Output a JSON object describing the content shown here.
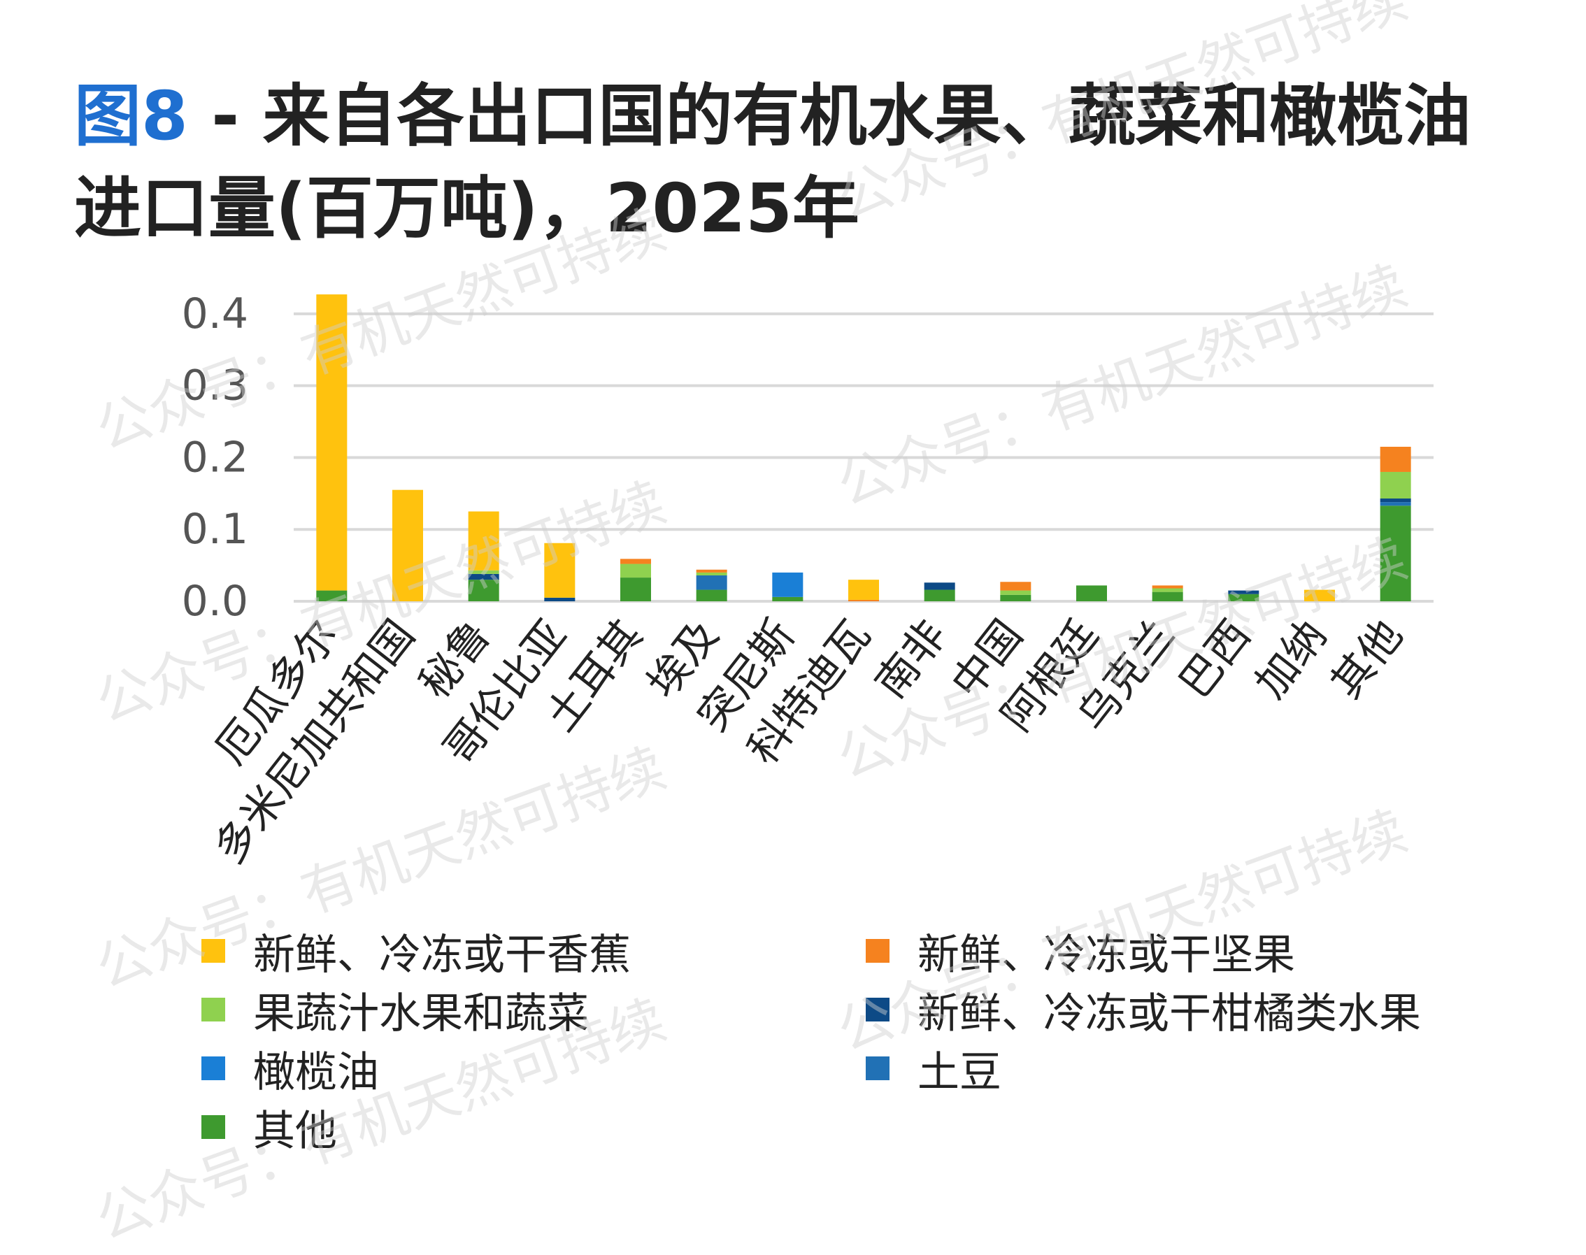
{
  "header": {
    "figure_label": "图8",
    "title_text": " - 来自各出口国的有机水果、蔬菜和橄榄油进口量(百万吨)，2025年"
  },
  "watermark_text": "公众号：有机天然可持续",
  "colors": {
    "title_accent": "#1f6fd0",
    "gridline": "#d9d9d9",
    "tick_text": "#555555"
  },
  "chart_data": {
    "type": "bar",
    "stacked": true,
    "ylim": [
      0,
      0.43
    ],
    "yticks": [
      "0.0",
      "0.1",
      "0.2",
      "0.3",
      "0.4"
    ],
    "grid": true,
    "legend_position": "bottom",
    "categories": [
      "厄瓜多尔",
      "多米尼加共和国",
      "秘鲁",
      "哥伦比亚",
      "土耳其",
      "埃及",
      "突尼斯",
      "科特迪瓦",
      "南非",
      "中国",
      "阿根廷",
      "乌克兰",
      "巴西",
      "加纳",
      "其他"
    ],
    "series": [
      {
        "name": "其他",
        "color": "#3e9a2f",
        "values": [
          0.015,
          0.0,
          0.03,
          0.0,
          0.033,
          0.016,
          0.006,
          0.0,
          0.016,
          0.009,
          0.022,
          0.013,
          0.01,
          0.0,
          0.133
        ]
      },
      {
        "name": "土豆",
        "color": "#2171b5",
        "values": [
          0.0,
          0.0,
          0.0,
          0.0,
          0.0,
          0.02,
          0.0,
          0.0,
          0.0,
          0.0,
          0.0,
          0.0,
          0.0,
          0.0,
          0.005
        ]
      },
      {
        "name": "新鲜、冷冻或干柑橘类水果",
        "color": "#0d4a86",
        "values": [
          0.0,
          0.0,
          0.008,
          0.005,
          0.0,
          0.0,
          0.0,
          0.0,
          0.01,
          0.0,
          0.0,
          0.0,
          0.005,
          0.0,
          0.005
        ]
      },
      {
        "name": "橄榄油",
        "color": "#1a7fd6",
        "values": [
          0.0,
          0.0,
          0.0,
          0.0,
          0.0,
          0.0,
          0.034,
          0.0,
          0.0,
          0.0,
          0.0,
          0.0,
          0.0,
          0.0,
          0.0
        ]
      },
      {
        "name": "果蔬汁水果和蔬菜",
        "color": "#8fd14f",
        "values": [
          0.0,
          0.0,
          0.005,
          0.0,
          0.019,
          0.004,
          0.0,
          0.0,
          0.0,
          0.006,
          0.0,
          0.005,
          0.0,
          0.0,
          0.037
        ]
      },
      {
        "name": "新鲜、冷冻或干坚果",
        "color": "#f5821f",
        "values": [
          0.0,
          0.0,
          0.0,
          0.0,
          0.007,
          0.004,
          0.0,
          0.002,
          0.0,
          0.012,
          0.0,
          0.004,
          0.0,
          0.0,
          0.035
        ]
      },
      {
        "name": "新鲜、冷冻或干香蕉",
        "color": "#ffc20e",
        "values": [
          0.412,
          0.155,
          0.082,
          0.076,
          0.0,
          0.0,
          0.0,
          0.028,
          0.0,
          0.0,
          0.0,
          0.0,
          0.0,
          0.016,
          0.0
        ]
      }
    ],
    "legend": [
      {
        "name": "新鲜、冷冻或干香蕉",
        "color": "#ffc20e"
      },
      {
        "name": "新鲜、冷冻或干坚果",
        "color": "#f5821f"
      },
      {
        "name": "果蔬汁水果和蔬菜",
        "color": "#8fd14f"
      },
      {
        "name": "新鲜、冷冻或干柑橘类水果",
        "color": "#0d4a86"
      },
      {
        "name": "橄榄油",
        "color": "#1a7fd6"
      },
      {
        "name": "土豆",
        "color": "#2171b5"
      },
      {
        "name": "其他",
        "color": "#3e9a2f"
      }
    ]
  }
}
